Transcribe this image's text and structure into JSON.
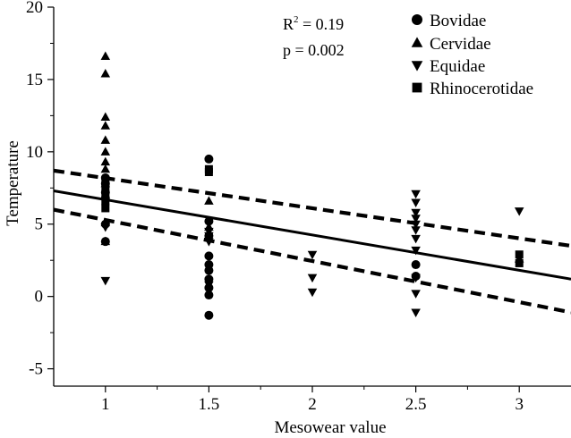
{
  "chart_data": {
    "type": "scatter",
    "xlabel": "Mesowear value",
    "ylabel": "Temperature",
    "xlim": [
      0.75,
      3.25
    ],
    "ylim": [
      -6.2,
      20
    ],
    "xticks": [
      "1",
      "1.5",
      "2",
      "2.5",
      "3"
    ],
    "yticks": [
      "-5",
      "0",
      "5",
      "10",
      "15",
      "20"
    ],
    "annotations": {
      "r_squared": "0.19",
      "p": "p = 0.002"
    },
    "legend_position": "top-right",
    "grid": false,
    "series": [
      {
        "name": "Bovidae",
        "marker": "circle",
        "points": [
          {
            "x": 1,
            "y": 3.8
          },
          {
            "x": 1,
            "y": 5.0
          },
          {
            "x": 1,
            "y": 6.8
          },
          {
            "x": 1,
            "y": 7.2
          },
          {
            "x": 1,
            "y": 7.8
          },
          {
            "x": 1,
            "y": 8.2
          },
          {
            "x": 1.5,
            "y": 9.5
          },
          {
            "x": 1.5,
            "y": 5.2
          },
          {
            "x": 1.5,
            "y": 4.2
          },
          {
            "x": 1.5,
            "y": 2.8
          },
          {
            "x": 1.5,
            "y": 2.2
          },
          {
            "x": 1.5,
            "y": 1.8
          },
          {
            "x": 1.5,
            "y": 1.2
          },
          {
            "x": 1.5,
            "y": 0.6
          },
          {
            "x": 1.5,
            "y": 0.1
          },
          {
            "x": 1.5,
            "y": -1.3
          },
          {
            "x": 2.5,
            "y": 2.2
          },
          {
            "x": 2.5,
            "y": 1.4
          }
        ]
      },
      {
        "name": "Cervidae",
        "marker": "triangle-up",
        "points": [
          {
            "x": 1,
            "y": 16.6
          },
          {
            "x": 1,
            "y": 15.4
          },
          {
            "x": 1,
            "y": 12.4
          },
          {
            "x": 1,
            "y": 11.8
          },
          {
            "x": 1,
            "y": 10.8
          },
          {
            "x": 1,
            "y": 10.0
          },
          {
            "x": 1,
            "y": 9.3
          },
          {
            "x": 1,
            "y": 8.8
          },
          {
            "x": 1,
            "y": 7.8
          },
          {
            "x": 1,
            "y": 5.1
          },
          {
            "x": 1,
            "y": 3.8
          },
          {
            "x": 1.5,
            "y": 6.6
          },
          {
            "x": 1.5,
            "y": 4.8
          },
          {
            "x": 3,
            "y": 2.6
          }
        ]
      },
      {
        "name": "Equidae",
        "marker": "triangle-down",
        "points": [
          {
            "x": 1,
            "y": 4.8
          },
          {
            "x": 1,
            "y": 1.1
          },
          {
            "x": 1.5,
            "y": 4.5
          },
          {
            "x": 1.5,
            "y": 4.2
          },
          {
            "x": 1.5,
            "y": 3.8
          },
          {
            "x": 1.5,
            "y": 0.8
          },
          {
            "x": 2,
            "y": 2.9
          },
          {
            "x": 2,
            "y": 1.3
          },
          {
            "x": 2,
            "y": 0.3
          },
          {
            "x": 2.5,
            "y": 7.1
          },
          {
            "x": 2.5,
            "y": 6.5
          },
          {
            "x": 2.5,
            "y": 5.8
          },
          {
            "x": 2.5,
            "y": 5.4
          },
          {
            "x": 2.5,
            "y": 5.0
          },
          {
            "x": 2.5,
            "y": 4.6
          },
          {
            "x": 2.5,
            "y": 4.0
          },
          {
            "x": 2.5,
            "y": 3.2
          },
          {
            "x": 2.5,
            "y": 1.3
          },
          {
            "x": 2.5,
            "y": 0.2
          },
          {
            "x": 2.5,
            "y": -1.1
          },
          {
            "x": 3,
            "y": 5.9
          }
        ]
      },
      {
        "name": "Rhinocerotidae",
        "marker": "square",
        "points": [
          {
            "x": 1,
            "y": 8.0
          },
          {
            "x": 1,
            "y": 7.5
          },
          {
            "x": 1,
            "y": 7.0
          },
          {
            "x": 1,
            "y": 6.6
          },
          {
            "x": 1,
            "y": 6.1
          },
          {
            "x": 1.5,
            "y": 8.8
          },
          {
            "x": 1.5,
            "y": 8.6
          },
          {
            "x": 3,
            "y": 2.9
          },
          {
            "x": 3,
            "y": 2.3
          }
        ]
      }
    ],
    "fit_lines": [
      {
        "name": "regression",
        "style": "solid",
        "x": [
          0.75,
          3.25
        ],
        "y": [
          7.3,
          1.2
        ]
      },
      {
        "name": "confidence-upper",
        "style": "dashed",
        "x": [
          0.75,
          3.25
        ],
        "y": [
          8.7,
          3.5
        ]
      },
      {
        "name": "confidence-lower",
        "style": "dashed",
        "x": [
          0.75,
          3.25
        ],
        "y": [
          6.0,
          -1.1
        ]
      }
    ]
  }
}
